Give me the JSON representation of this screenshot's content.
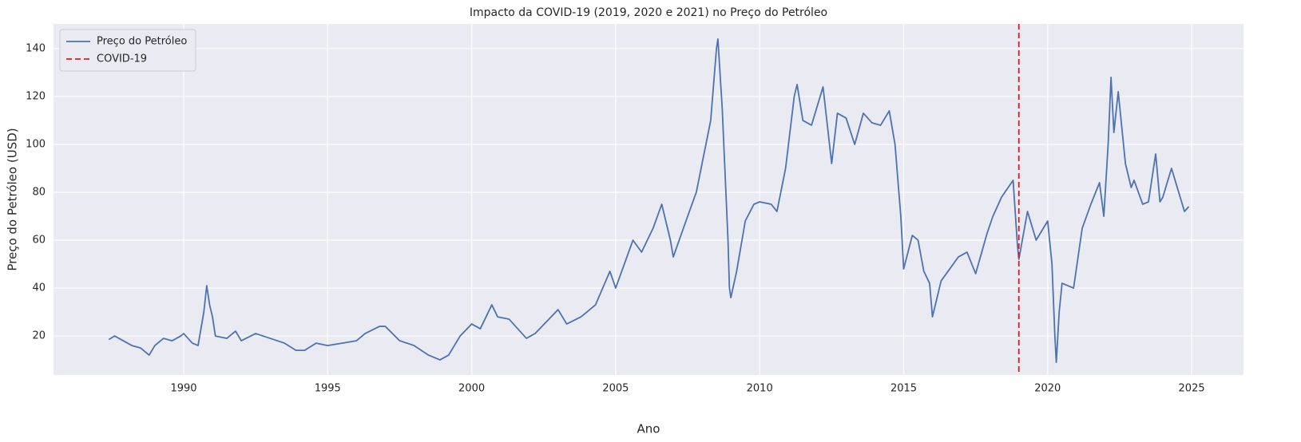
{
  "chart_data": {
    "type": "line",
    "title": "Impacto da COVID-19 (2019, 2020 e 2021) no Preço do Petróleo",
    "xlabel": "Ano",
    "ylabel": "Preço do Petróleo (USD)",
    "x": [
      1987.4,
      1987.6,
      1987.9,
      1988.2,
      1988.5,
      1988.8,
      1989.0,
      1989.3,
      1989.6,
      1989.9,
      1990.0,
      1990.3,
      1990.5,
      1990.7,
      1990.8,
      1990.9,
      1991.0,
      1991.1,
      1991.5,
      1991.8,
      1992.0,
      1992.5,
      1993.0,
      1993.5,
      1993.9,
      1994.2,
      1994.6,
      1995.0,
      1995.5,
      1996.0,
      1996.3,
      1996.8,
      1997.0,
      1997.5,
      1998.0,
      1998.5,
      1998.9,
      1999.2,
      1999.6,
      2000.0,
      2000.3,
      2000.7,
      2000.9,
      2001.3,
      2001.9,
      2002.2,
      2002.6,
      2003.0,
      2003.3,
      2003.8,
      2004.3,
      2004.8,
      2005.0,
      2005.6,
      2005.9,
      2006.3,
      2006.6,
      2006.9,
      2007.0,
      2007.5,
      2007.8,
      2008.0,
      2008.3,
      2008.5,
      2008.55,
      2008.7,
      2008.9,
      2008.95,
      2009.0,
      2009.2,
      2009.5,
      2009.8,
      2010.0,
      2010.4,
      2010.6,
      2010.9,
      2011.2,
      2011.3,
      2011.5,
      2011.8,
      2012.2,
      2012.5,
      2012.7,
      2013.0,
      2013.3,
      2013.6,
      2013.9,
      2014.2,
      2014.5,
      2014.7,
      2014.9,
      2015.0,
      2015.3,
      2015.5,
      2015.7,
      2015.9,
      2016.0,
      2016.3,
      2016.6,
      2016.9,
      2017.2,
      2017.5,
      2017.9,
      2018.1,
      2018.4,
      2018.8,
      2018.95,
      2019.0,
      2019.3,
      2019.6,
      2019.9,
      2020.0,
      2020.15,
      2020.25,
      2020.3,
      2020.4,
      2020.5,
      2020.9,
      2021.2,
      2021.5,
      2021.8,
      2021.95,
      2022.1,
      2022.2,
      2022.3,
      2022.45,
      2022.7,
      2022.9,
      2023.0,
      2023.3,
      2023.5,
      2023.75,
      2023.9,
      2024.0,
      2024.3,
      2024.6,
      2024.75,
      2024.9
    ],
    "series": [
      {
        "name": "Preço do Petróleo",
        "color": "#4c72b0",
        "values": [
          18.5,
          20,
          18,
          16,
          15,
          12,
          16,
          19,
          18,
          20,
          21,
          17,
          16,
          30,
          41,
          33,
          28,
          20,
          19,
          22,
          18,
          21,
          19,
          17,
          14,
          14,
          17,
          16,
          17,
          18,
          21,
          24,
          24,
          18,
          16,
          12,
          10,
          12,
          20,
          25,
          23,
          33,
          28,
          27,
          19,
          21,
          26,
          31,
          25,
          28,
          33,
          47,
          40,
          60,
          55,
          65,
          75,
          60,
          53,
          70,
          80,
          92,
          110,
          140,
          144,
          115,
          60,
          40,
          36,
          47,
          68,
          75,
          76,
          75,
          72,
          90,
          120,
          125,
          110,
          108,
          124,
          92,
          113,
          111,
          100,
          113,
          109,
          108,
          114,
          100,
          70,
          48,
          62,
          60,
          47,
          42,
          28,
          43,
          48,
          53,
          55,
          46,
          63,
          70,
          78,
          85,
          58,
          52,
          72,
          60,
          66,
          68,
          50,
          20,
          9,
          30,
          42,
          40,
          65,
          75,
          84,
          70,
          100,
          128,
          105,
          122,
          92,
          82,
          85,
          75,
          76,
          96,
          76,
          78,
          90,
          78,
          72,
          74
        ]
      }
    ],
    "vlines": [
      {
        "name": "COVID-19",
        "x": 2019,
        "color": "#e31a1c"
      }
    ],
    "xlim": [
      1985.48,
      2026.8
    ],
    "ylim": [
      3.7,
      150.3
    ],
    "xticks": [
      1990,
      1995,
      2000,
      2005,
      2010,
      2015,
      2020,
      2025
    ],
    "yticks": [
      20,
      40,
      60,
      80,
      100,
      120,
      140
    ],
    "grid": true,
    "legend": "upper left"
  }
}
